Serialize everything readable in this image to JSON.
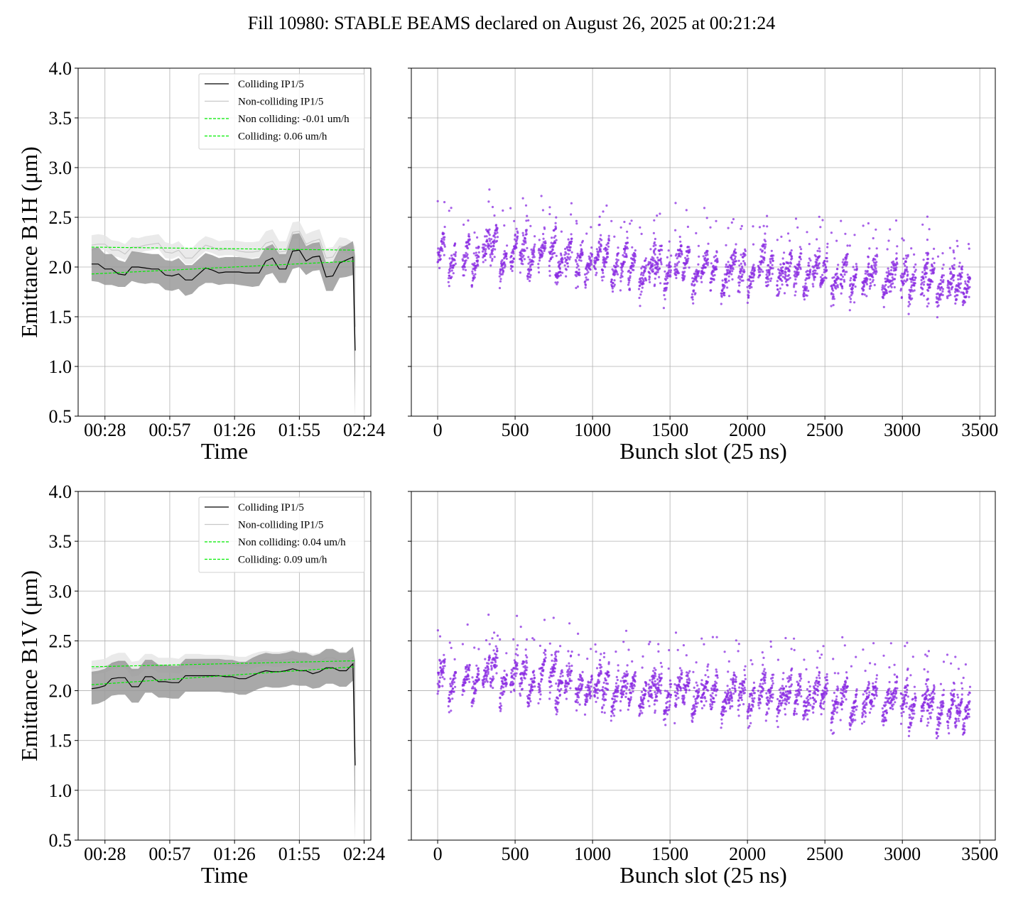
{
  "figure": {
    "title": "Fill 10980: STABLE BEAMS declared on August 26, 2025 at 00:21:24"
  },
  "colors": {
    "colliding": "#000000",
    "noncolliding": "#c8c8c8",
    "band_colliding": "#9a9a9a",
    "band_noncolliding": "#e6e6e6",
    "fit": "#00ee00",
    "scatter": "#8a2be2",
    "grid": "#b0b0b0"
  },
  "chart_data": [
    {
      "type": "line",
      "panel": "top-left",
      "xlabel": "Time",
      "ylabel": "Emittance B1H (μm)",
      "x_ticks": [
        "00:28",
        "00:57",
        "01:26",
        "01:55",
        "02:24"
      ],
      "x_range_minutes": [
        16,
        147
      ],
      "x_tick_minutes": [
        28,
        57,
        86,
        115,
        144
      ],
      "ylim": [
        0.5,
        4.0
      ],
      "y_ticks": [
        "0.5",
        "1.0",
        "1.5",
        "2.0",
        "2.5",
        "3.0",
        "3.5",
        "4.0"
      ],
      "grid": true,
      "legend_placement": "upper-right",
      "legend": [
        "Colliding IP1/5",
        "Non-colliding IP1/5",
        "Non colliding: -0.01 um/h",
        "Colliding: 0.06 um/h"
      ],
      "time_minutes": [
        22,
        25,
        28,
        31,
        34,
        37,
        40,
        43,
        46,
        49,
        52,
        55,
        58,
        61,
        64,
        67,
        70,
        73,
        76,
        79,
        82,
        85,
        88,
        91,
        94,
        97,
        100,
        103,
        106,
        109,
        112,
        115,
        118,
        121,
        124,
        127,
        130,
        133,
        136,
        139,
        140
      ],
      "series": [
        {
          "name": "Colliding IP1/5",
          "values": [
            2.03,
            2.03,
            1.98,
            1.98,
            1.93,
            1.92,
            2.0,
            2.0,
            1.99,
            1.98,
            1.98,
            1.92,
            1.91,
            1.93,
            1.87,
            1.87,
            1.93,
            1.99,
            1.97,
            1.94,
            1.95,
            1.95,
            1.95,
            1.94,
            1.94,
            1.94,
            2.06,
            2.09,
            1.98,
            1.98,
            2.16,
            2.17,
            2.06,
            2.1,
            2.11,
            1.9,
            1.91,
            2.04,
            2.07,
            2.1,
            1.16
          ],
          "lower": [
            1.86,
            1.85,
            1.82,
            1.82,
            1.8,
            1.8,
            1.86,
            1.84,
            1.83,
            1.84,
            1.83,
            1.77,
            1.76,
            1.78,
            1.71,
            1.73,
            1.8,
            1.84,
            1.84,
            1.82,
            1.83,
            1.83,
            1.82,
            1.81,
            1.8,
            1.81,
            1.92,
            1.94,
            1.84,
            1.84,
            1.98,
            2.0,
            1.92,
            1.96,
            1.97,
            1.76,
            1.76,
            1.89,
            1.9,
            1.92,
            0.5
          ],
          "upper": [
            2.19,
            2.2,
            2.13,
            2.13,
            2.07,
            2.05,
            2.16,
            2.15,
            2.14,
            2.13,
            2.13,
            2.07,
            2.06,
            2.09,
            2.02,
            2.02,
            2.08,
            2.14,
            2.12,
            2.09,
            2.1,
            2.1,
            2.1,
            2.09,
            2.08,
            2.09,
            2.2,
            2.23,
            2.13,
            2.13,
            2.33,
            2.34,
            2.21,
            2.24,
            2.25,
            2.04,
            2.05,
            2.19,
            2.22,
            2.26,
            2.1
          ]
        },
        {
          "name": "Non-colliding IP1/5",
          "values": [
            2.22,
            2.23,
            2.23,
            2.17,
            2.17,
            2.13,
            2.2,
            2.2,
            2.22,
            2.23,
            2.24,
            2.15,
            2.14,
            2.17,
            2.09,
            2.09,
            2.16,
            2.22,
            2.2,
            2.17,
            2.18,
            2.18,
            2.16,
            2.15,
            2.15,
            2.16,
            2.24,
            2.26,
            2.15,
            2.16,
            2.35,
            2.36,
            2.23,
            2.26,
            2.28,
            2.09,
            2.1,
            2.21,
            2.2,
            2.16,
            1.4
          ],
          "lower": [
            2.16,
            2.18,
            2.17,
            2.11,
            2.1,
            2.07,
            2.14,
            2.14,
            2.16,
            2.17,
            2.18,
            2.09,
            2.08,
            2.11,
            2.03,
            2.03,
            2.1,
            2.16,
            2.14,
            2.11,
            2.12,
            2.12,
            2.1,
            2.09,
            2.09,
            2.1,
            2.18,
            2.2,
            2.09,
            2.1,
            2.28,
            2.29,
            2.17,
            2.2,
            2.22,
            2.03,
            2.04,
            2.15,
            2.14,
            2.1,
            0.5
          ],
          "upper": [
            2.32,
            2.33,
            2.32,
            2.27,
            2.26,
            2.23,
            2.3,
            2.29,
            2.31,
            2.32,
            2.33,
            2.25,
            2.23,
            2.26,
            2.19,
            2.19,
            2.26,
            2.31,
            2.29,
            2.26,
            2.27,
            2.27,
            2.26,
            2.25,
            2.25,
            2.26,
            2.36,
            2.38,
            2.26,
            2.26,
            2.45,
            2.46,
            2.33,
            2.36,
            2.38,
            2.19,
            2.2,
            2.3,
            2.29,
            2.25,
            2.2
          ]
        },
        {
          "name": "Non colliding: -0.01 um/h",
          "fit": true,
          "x": [
            22,
            140
          ],
          "values": [
            2.2,
            2.17
          ]
        },
        {
          "name": "Colliding: 0.06 um/h",
          "fit": true,
          "x": [
            22,
            140
          ],
          "values": [
            1.93,
            2.06
          ]
        }
      ]
    },
    {
      "type": "scatter",
      "panel": "top-right",
      "xlabel": "Bunch slot (25 ns)",
      "xlim": [
        -170,
        3600
      ],
      "x_ticks": [
        0,
        500,
        1000,
        1500,
        2000,
        2500,
        3000,
        3500
      ],
      "ylim": [
        0.5,
        4.0
      ],
      "grid": true,
      "series_color": "#8a2be2",
      "train_starts": [
        0,
        70,
        160,
        220,
        290,
        340,
        400,
        470,
        530,
        580,
        650,
        720,
        760,
        820,
        890,
        950,
        1010,
        1060,
        1120,
        1180,
        1230,
        1300,
        1360,
        1400,
        1460,
        1530,
        1580,
        1640,
        1700,
        1760,
        1830,
        1880,
        1940,
        2000,
        2070,
        2120,
        2190,
        2240,
        2300,
        2360,
        2420,
        2470,
        2540,
        2600,
        2660,
        2740,
        2790,
        2870,
        2920,
        2990,
        3040,
        3120,
        3160,
        3220,
        3290,
        3340,
        3390
      ],
      "train_levels": [
        2.22,
        2.05,
        2.15,
        2.03,
        2.24,
        2.26,
        2.05,
        2.2,
        2.22,
        2.06,
        2.19,
        2.24,
        2.0,
        2.16,
        2.05,
        2.02,
        2.15,
        2.1,
        1.95,
        2.1,
        2.04,
        1.92,
        2.08,
        2.06,
        1.9,
        2.1,
        2.05,
        1.88,
        2.05,
        2.0,
        1.86,
        2.05,
        2.02,
        1.88,
        2.08,
        1.98,
        1.92,
        2.0,
        1.98,
        1.88,
        2.02,
        1.98,
        1.84,
        2.0,
        1.84,
        1.92,
        1.98,
        1.84,
        1.98,
        1.95,
        1.82,
        1.96,
        1.9,
        1.78,
        1.88,
        1.84,
        1.8
      ],
      "train_slope_per_slot": 0.0055,
      "train_length_slots": 48,
      "spread": 0.07
    },
    {
      "type": "line",
      "panel": "bottom-left",
      "xlabel": "Time",
      "ylabel": "Emittance B1V (μm)",
      "x_ticks": [
        "00:28",
        "00:57",
        "01:26",
        "01:55",
        "02:24"
      ],
      "x_range_minutes": [
        16,
        147
      ],
      "x_tick_minutes": [
        28,
        57,
        86,
        115,
        144
      ],
      "ylim": [
        0.5,
        4.0
      ],
      "y_ticks": [
        "0.5",
        "1.0",
        "1.5",
        "2.0",
        "2.5",
        "3.0",
        "3.5",
        "4.0"
      ],
      "grid": true,
      "legend_placement": "upper-right",
      "legend": [
        "Colliding IP1/5",
        "Non-colliding IP1/5",
        "Non colliding: 0.04 um/h",
        "Colliding: 0.09 um/h"
      ],
      "time_minutes": [
        22,
        25,
        28,
        31,
        34,
        37,
        40,
        43,
        46,
        49,
        52,
        55,
        58,
        61,
        64,
        67,
        70,
        73,
        76,
        79,
        82,
        85,
        88,
        91,
        94,
        97,
        100,
        103,
        106,
        109,
        112,
        115,
        118,
        121,
        124,
        127,
        130,
        133,
        136,
        139,
        140
      ],
      "series": [
        {
          "name": "Colliding IP1/5",
          "values": [
            2.02,
            2.03,
            2.05,
            2.12,
            2.13,
            2.13,
            2.04,
            2.04,
            2.14,
            2.14,
            2.09,
            2.09,
            2.08,
            2.08,
            2.15,
            2.15,
            2.15,
            2.15,
            2.15,
            2.15,
            2.14,
            2.14,
            2.12,
            2.12,
            2.15,
            2.18,
            2.2,
            2.19,
            2.19,
            2.2,
            2.22,
            2.2,
            2.2,
            2.17,
            2.19,
            2.23,
            2.23,
            2.2,
            2.2,
            2.27,
            1.25
          ],
          "lower": [
            1.86,
            1.87,
            1.9,
            1.95,
            1.96,
            1.96,
            1.88,
            1.88,
            1.98,
            1.98,
            1.93,
            1.93,
            1.92,
            1.92,
            1.99,
            1.99,
            1.99,
            1.99,
            1.99,
            1.99,
            1.98,
            1.98,
            1.96,
            1.96,
            1.99,
            2.02,
            2.04,
            2.03,
            2.03,
            2.04,
            2.06,
            2.05,
            2.05,
            2.02,
            2.03,
            2.07,
            2.07,
            2.04,
            2.04,
            2.1,
            0.5
          ],
          "upper": [
            2.19,
            2.2,
            2.22,
            2.28,
            2.3,
            2.3,
            2.22,
            2.22,
            2.31,
            2.31,
            2.26,
            2.26,
            2.25,
            2.25,
            2.32,
            2.32,
            2.32,
            2.32,
            2.32,
            2.32,
            2.31,
            2.31,
            2.29,
            2.29,
            2.33,
            2.36,
            2.38,
            2.37,
            2.37,
            2.38,
            2.4,
            2.38,
            2.38,
            2.35,
            2.37,
            2.42,
            2.42,
            2.38,
            2.38,
            2.44,
            2.3
          ]
        },
        {
          "name": "Non-colliding IP1/5",
          "values": [
            2.22,
            2.23,
            2.24,
            2.27,
            2.29,
            2.29,
            2.2,
            2.21,
            2.28,
            2.28,
            2.24,
            2.24,
            2.24,
            2.23,
            2.28,
            2.28,
            2.28,
            2.27,
            2.27,
            2.27,
            2.27,
            2.26,
            2.25,
            2.25,
            2.28,
            2.3,
            2.31,
            2.3,
            2.3,
            2.31,
            2.32,
            2.3,
            2.3,
            2.28,
            2.29,
            2.33,
            2.33,
            2.3,
            2.3,
            2.34,
            1.4
          ],
          "lower": [
            2.16,
            2.17,
            2.18,
            2.21,
            2.23,
            2.23,
            2.14,
            2.15,
            2.22,
            2.22,
            2.18,
            2.18,
            2.18,
            2.17,
            2.22,
            2.22,
            2.22,
            2.21,
            2.21,
            2.21,
            2.21,
            2.2,
            2.19,
            2.19,
            2.22,
            2.24,
            2.25,
            2.24,
            2.24,
            2.25,
            2.26,
            2.24,
            2.24,
            2.22,
            2.23,
            2.27,
            2.27,
            2.24,
            2.24,
            2.28,
            0.5
          ],
          "upper": [
            2.3,
            2.31,
            2.32,
            2.36,
            2.38,
            2.38,
            2.29,
            2.3,
            2.37,
            2.37,
            2.33,
            2.33,
            2.33,
            2.32,
            2.37,
            2.37,
            2.37,
            2.36,
            2.36,
            2.36,
            2.36,
            2.35,
            2.34,
            2.34,
            2.37,
            2.39,
            2.4,
            2.39,
            2.39,
            2.4,
            2.41,
            2.39,
            2.39,
            2.37,
            2.38,
            2.42,
            2.42,
            2.39,
            2.39,
            2.43,
            2.32
          ]
        },
        {
          "name": "Non colliding: 0.04 um/h",
          "fit": true,
          "x": [
            22,
            140
          ],
          "values": [
            2.24,
            2.3
          ]
        },
        {
          "name": "Colliding: 0.09 um/h",
          "fit": true,
          "x": [
            22,
            140
          ],
          "values": [
            2.06,
            2.24
          ]
        }
      ]
    },
    {
      "type": "scatter",
      "panel": "bottom-right",
      "xlabel": "Bunch slot (25 ns)",
      "xlim": [
        -170,
        3600
      ],
      "x_ticks": [
        0,
        500,
        1000,
        1500,
        2000,
        2500,
        3000,
        3500
      ],
      "ylim": [
        0.5,
        4.0
      ],
      "grid": true,
      "series_color": "#8a2be2",
      "train_starts": [
        0,
        70,
        160,
        220,
        290,
        340,
        400,
        470,
        530,
        580,
        650,
        720,
        760,
        820,
        890,
        950,
        1010,
        1060,
        1120,
        1180,
        1230,
        1300,
        1360,
        1400,
        1460,
        1530,
        1580,
        1640,
        1700,
        1760,
        1830,
        1880,
        1940,
        2000,
        2070,
        2120,
        2190,
        2240,
        2300,
        2360,
        2420,
        2470,
        2540,
        2600,
        2660,
        2740,
        2790,
        2870,
        2920,
        2990,
        3040,
        3120,
        3160,
        3220,
        3290,
        3340,
        3390
      ],
      "train_levels": [
        2.2,
        2.04,
        2.14,
        2.05,
        2.22,
        2.26,
        2.06,
        2.22,
        2.2,
        2.04,
        2.18,
        2.22,
        2.0,
        2.14,
        2.04,
        2.0,
        2.12,
        2.06,
        1.96,
        2.08,
        2.04,
        1.94,
        2.08,
        2.05,
        1.9,
        2.06,
        2.06,
        1.9,
        2.05,
        2.0,
        1.88,
        2.04,
        2.02,
        1.88,
        2.06,
        1.98,
        1.92,
        2.0,
        1.98,
        1.88,
        2.02,
        1.98,
        1.84,
        2.0,
        1.82,
        1.92,
        1.98,
        1.84,
        1.98,
        1.95,
        1.82,
        1.94,
        1.9,
        1.78,
        1.88,
        1.84,
        1.8
      ],
      "train_slope_per_slot": 0.0055,
      "train_length_slots": 48,
      "spread": 0.07
    }
  ]
}
